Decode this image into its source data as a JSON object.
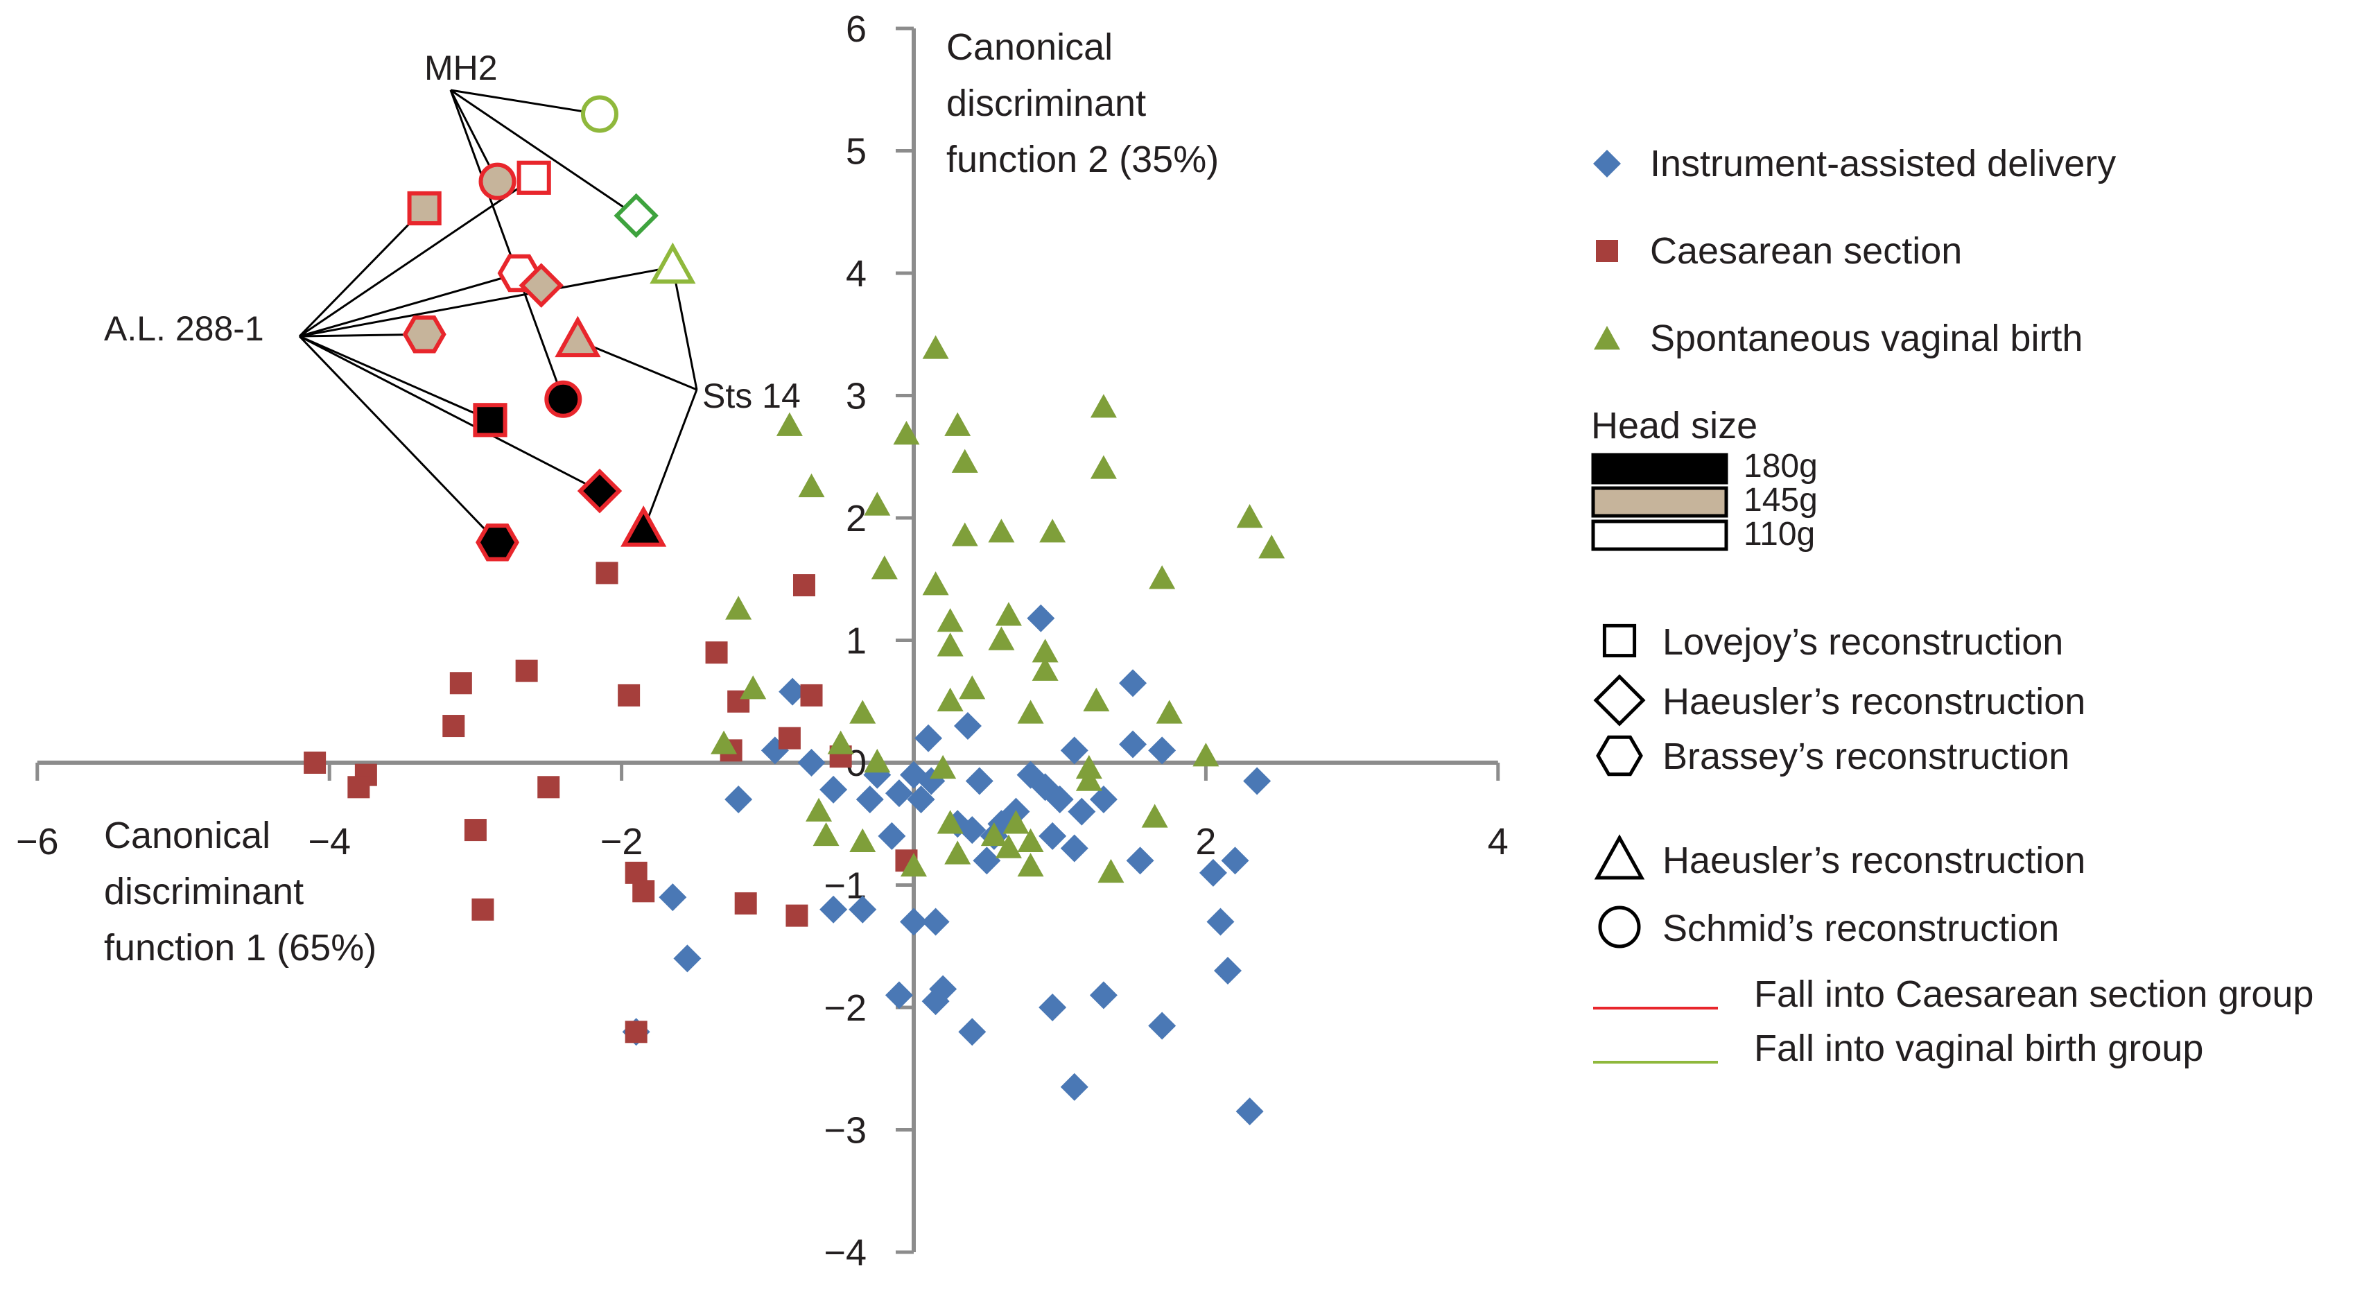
{
  "colors": {
    "instrument": "#4a78b5",
    "caesarean": "#a63f3c",
    "spontaneous": "#7f9f3a",
    "red_line": "#e8262c",
    "green_line": "#8fb83c",
    "green_outline": "#3ea33e",
    "head_180": "#000000",
    "head_145": "#c6b49b",
    "head_110": "#ffffff",
    "axis": "#8c8c8c",
    "text": "#231f20"
  },
  "chart_data": {
    "type": "scatter",
    "xlim": [
      -6,
      4
    ],
    "ylim": [
      -4,
      6
    ],
    "x_ticks": [
      {
        "v": -6,
        "label": "−6"
      },
      {
        "v": -4,
        "label": "−4"
      },
      {
        "v": -2,
        "label": "−2"
      },
      {
        "v": 0,
        "label": "0"
      },
      {
        "v": 2,
        "label": "2"
      },
      {
        "v": 4,
        "label": "4"
      }
    ],
    "y_ticks": [
      {
        "v": 6,
        "label": "6"
      },
      {
        "v": 5,
        "label": "5"
      },
      {
        "v": 4,
        "label": "4"
      },
      {
        "v": 3,
        "label": "3"
      },
      {
        "v": 2,
        "label": "2"
      },
      {
        "v": 1,
        "label": "1"
      },
      {
        "v": 0,
        "label": "0"
      },
      {
        "v": -1,
        "label": "−1"
      },
      {
        "v": -2,
        "label": "−2"
      },
      {
        "v": -3,
        "label": "−3"
      },
      {
        "v": -4,
        "label": "−4"
      }
    ],
    "xlabel": [
      "Canonical",
      "discriminant",
      "function 1 (65%)"
    ],
    "ylabel": [
      "Canonical",
      "discriminant",
      "function 2 (35%)"
    ],
    "series": [
      {
        "name": "Instrument-assisted delivery",
        "marker": "diamond",
        "color_key": "instrument",
        "points": [
          [
            0.87,
            1.18
          ],
          [
            1.5,
            0.65
          ],
          [
            -0.83,
            0.58
          ],
          [
            -0.95,
            0.1
          ],
          [
            -1.2,
            -0.3
          ],
          [
            0.1,
            0.2
          ],
          [
            0.37,
            0.3
          ],
          [
            -0.7,
            0.0
          ],
          [
            -0.55,
            -0.22
          ],
          [
            -0.3,
            -0.3
          ],
          [
            -0.25,
            -0.1
          ],
          [
            -0.15,
            -0.6
          ],
          [
            -0.1,
            -0.25
          ],
          [
            0.0,
            -0.1
          ],
          [
            0.05,
            -0.3
          ],
          [
            0.12,
            -0.15
          ],
          [
            0.3,
            -0.5
          ],
          [
            0.4,
            -0.55
          ],
          [
            0.45,
            -0.15
          ],
          [
            0.55,
            -0.6
          ],
          [
            0.6,
            -0.5
          ],
          [
            0.5,
            -0.8
          ],
          [
            0.7,
            -0.4
          ],
          [
            0.8,
            -0.1
          ],
          [
            0.9,
            -0.2
          ],
          [
            0.95,
            -0.6
          ],
          [
            1.0,
            -0.3
          ],
          [
            1.1,
            -0.7
          ],
          [
            1.15,
            -0.4
          ],
          [
            1.1,
            0.1
          ],
          [
            1.3,
            -0.3
          ],
          [
            1.5,
            0.15
          ],
          [
            1.55,
            -0.8
          ],
          [
            1.7,
            0.1
          ],
          [
            2.05,
            -0.9
          ],
          [
            2.2,
            -0.8
          ],
          [
            2.35,
            -0.15
          ],
          [
            2.1,
            -1.3
          ],
          [
            2.15,
            -1.7
          ],
          [
            -1.65,
            -1.1
          ],
          [
            -1.55,
            -1.6
          ],
          [
            -0.55,
            -1.2
          ],
          [
            -0.35,
            -1.2
          ],
          [
            0.0,
            -1.3
          ],
          [
            0.15,
            -1.3
          ],
          [
            -0.1,
            -1.9
          ],
          [
            0.15,
            -1.95
          ],
          [
            0.2,
            -1.85
          ],
          [
            0.4,
            -2.2
          ],
          [
            0.95,
            -2.0
          ],
          [
            1.3,
            -1.9
          ],
          [
            1.7,
            -2.15
          ],
          [
            1.1,
            -2.65
          ],
          [
            2.3,
            -2.85
          ],
          [
            -1.9,
            -2.2
          ]
        ]
      },
      {
        "name": "Caesarean section",
        "marker": "square",
        "color_key": "caesarean",
        "points": [
          [
            -2.1,
            1.55
          ],
          [
            -0.75,
            1.45
          ],
          [
            -1.35,
            0.9
          ],
          [
            -3.1,
            0.65
          ],
          [
            -2.65,
            0.75
          ],
          [
            -1.95,
            0.55
          ],
          [
            -0.7,
            0.55
          ],
          [
            -1.2,
            0.5
          ],
          [
            -3.15,
            0.3
          ],
          [
            -0.85,
            0.2
          ],
          [
            -1.25,
            0.1
          ],
          [
            -0.5,
            0.05
          ],
          [
            -4.1,
            0.0
          ],
          [
            -3.75,
            -0.1
          ],
          [
            -3.8,
            -0.2
          ],
          [
            -2.5,
            -0.2
          ],
          [
            -3.0,
            -0.55
          ],
          [
            -0.05,
            -0.8
          ],
          [
            -1.9,
            -0.9
          ],
          [
            -1.85,
            -1.05
          ],
          [
            -2.95,
            -1.2
          ],
          [
            -1.15,
            -1.15
          ],
          [
            -0.8,
            -1.25
          ],
          [
            -1.9,
            -2.2
          ]
        ]
      },
      {
        "name": "Spontaneous vaginal birth",
        "marker": "triangle",
        "color_key": "spontaneous",
        "points": [
          [
            0.15,
            3.38
          ],
          [
            0.3,
            2.75
          ],
          [
            1.3,
            2.9
          ],
          [
            -0.85,
            2.75
          ],
          [
            -0.05,
            2.68
          ],
          [
            0.35,
            2.45
          ],
          [
            1.3,
            2.4
          ],
          [
            -0.7,
            2.25
          ],
          [
            -0.25,
            2.1
          ],
          [
            2.3,
            2.0
          ],
          [
            2.45,
            1.75
          ],
          [
            0.35,
            1.85
          ],
          [
            0.6,
            1.88
          ],
          [
            0.95,
            1.88
          ],
          [
            1.7,
            1.5
          ],
          [
            -0.2,
            1.58
          ],
          [
            0.15,
            1.45
          ],
          [
            -1.2,
            1.25
          ],
          [
            0.65,
            1.2
          ],
          [
            0.25,
            1.15
          ],
          [
            0.6,
            1.0
          ],
          [
            0.25,
            0.95
          ],
          [
            0.9,
            0.9
          ],
          [
            0.9,
            0.75
          ],
          [
            0.4,
            0.6
          ],
          [
            -1.1,
            0.6
          ],
          [
            -0.35,
            0.4
          ],
          [
            1.25,
            0.5
          ],
          [
            0.25,
            0.5
          ],
          [
            0.8,
            0.4
          ],
          [
            1.75,
            0.4
          ],
          [
            -1.3,
            0.15
          ],
          [
            -0.5,
            0.15
          ],
          [
            2.0,
            0.05
          ],
          [
            -0.25,
            0.0
          ],
          [
            0.2,
            -0.05
          ],
          [
            1.2,
            -0.05
          ],
          [
            1.2,
            -0.15
          ],
          [
            -0.65,
            -0.4
          ],
          [
            0.25,
            -0.5
          ],
          [
            0.7,
            -0.5
          ],
          [
            1.65,
            -0.45
          ],
          [
            -0.6,
            -0.6
          ],
          [
            -0.35,
            -0.65
          ],
          [
            0.55,
            -0.6
          ],
          [
            0.65,
            -0.7
          ],
          [
            0.8,
            -0.65
          ],
          [
            0.3,
            -0.75
          ],
          [
            0.8,
            -0.85
          ],
          [
            0.0,
            -0.85
          ],
          [
            1.35,
            -0.9
          ]
        ]
      }
    ],
    "fossils": [
      {
        "marker": "circle",
        "fill": "head_110",
        "stroke": "green_line",
        "x": -2.15,
        "y": 5.3
      },
      {
        "marker": "circle",
        "fill": "head_145",
        "stroke": "red_line",
        "x": -2.85,
        "y": 4.75
      },
      {
        "marker": "square",
        "fill": "head_110",
        "stroke": "red_line",
        "x": -2.6,
        "y": 4.78
      },
      {
        "marker": "square",
        "fill": "head_145",
        "stroke": "red_line",
        "x": -3.35,
        "y": 4.53
      },
      {
        "marker": "diamond",
        "fill": "head_110",
        "stroke": "green_outline",
        "x": -1.9,
        "y": 4.47
      },
      {
        "marker": "triangle",
        "fill": "head_110",
        "stroke": "green_line",
        "x": -1.65,
        "y": 4.05
      },
      {
        "marker": "hexagon",
        "fill": "head_110",
        "stroke": "red_line",
        "x": -2.7,
        "y": 4.0
      },
      {
        "marker": "diamond",
        "fill": "head_145",
        "stroke": "red_line",
        "x": -2.55,
        "y": 3.9
      },
      {
        "marker": "hexagon",
        "fill": "head_145",
        "stroke": "red_line",
        "x": -3.35,
        "y": 3.5
      },
      {
        "marker": "triangle",
        "fill": "head_145",
        "stroke": "red_line",
        "x": -2.3,
        "y": 3.45
      },
      {
        "marker": "circle",
        "fill": "head_180",
        "stroke": "red_line",
        "x": -2.4,
        "y": 2.97
      },
      {
        "marker": "square",
        "fill": "head_180",
        "stroke": "red_line",
        "x": -2.9,
        "y": 2.8
      },
      {
        "marker": "diamond",
        "fill": "head_180",
        "stroke": "red_line",
        "x": -2.15,
        "y": 2.22
      },
      {
        "marker": "triangle",
        "fill": "head_180",
        "stroke": "red_line",
        "x": -1.85,
        "y": 1.9
      },
      {
        "marker": "hexagon",
        "fill": "head_180",
        "stroke": "red_line",
        "x": -2.85,
        "y": 1.8
      }
    ],
    "fossil_labels": {
      "mh2": "MH2",
      "al288": "A.L. 288-1",
      "sts14": "Sts 14"
    },
    "legend": {
      "series": [
        "Instrument-assisted delivery",
        "Caesarean section",
        "Spontaneous vaginal birth"
      ],
      "head_size_title": "Head size",
      "head_sizes": [
        "180g",
        "145g",
        "110g"
      ],
      "reconstructions": [
        "Lovejoy’s reconstruction",
        "Haeusler’s reconstruction",
        "Brassey’s reconstruction",
        "Haeusler’s reconstruction",
        "Schmid’s reconstruction"
      ],
      "lines": [
        "Fall into Caesarean section group",
        "Fall into vaginal birth group"
      ]
    }
  }
}
